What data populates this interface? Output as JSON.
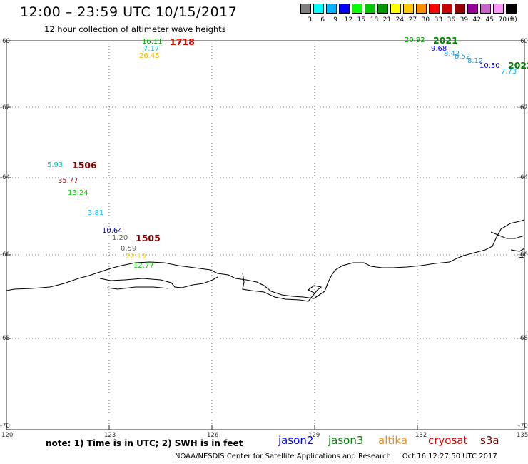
{
  "header": {
    "title": "12:00 – 23:59 UTC 10/15/2017",
    "subtitle": "12 hour collection of altimeter wave heights"
  },
  "legend": {
    "unit": "(ft)",
    "colors": [
      "#808080",
      "#00ffff",
      "#00b4ff",
      "#0000ff",
      "#00ff00",
      "#00c800",
      "#009600",
      "#ffff00",
      "#ffc800",
      "#ff8c00",
      "#ff0000",
      "#c80000",
      "#960000",
      "#960096",
      "#c864c8",
      "#ff96ff",
      "#000000"
    ],
    "labels": [
      "3",
      "6",
      "9",
      "12",
      "15",
      "18",
      "21",
      "24",
      "27",
      "30",
      "33",
      "36",
      "39",
      "42",
      "45",
      "70"
    ]
  },
  "axes": {
    "lat_labels": [
      "-60",
      "-62",
      "-64",
      "-66",
      "-68",
      "-70"
    ],
    "lon_labels": [
      "120",
      "123",
      "126",
      "129",
      "132",
      "135"
    ]
  },
  "tracks": [
    {
      "label": "1718",
      "color": "#e00000"
    },
    {
      "label": "2021",
      "color": "#008000"
    },
    {
      "label": "2022",
      "color": "#008000"
    },
    {
      "label": "1506",
      "color": "#800000"
    },
    {
      "label": "1505",
      "color": "#800000"
    }
  ],
  "wave_heights": [
    {
      "value": "16.11",
      "color": "#009600"
    },
    {
      "value": "7.17",
      "color": "#00c8c8"
    },
    {
      "value": "26.45",
      "color": "#f0b400"
    },
    {
      "value": "20.92",
      "color": "#009600"
    },
    {
      "value": "9.68",
      "color": "#0000ff"
    },
    {
      "value": "8.42",
      "color": "#00a0ff"
    },
    {
      "value": "8.52",
      "color": "#00a0ff"
    },
    {
      "value": "8.12",
      "color": "#00a0ff"
    },
    {
      "value": "10.50",
      "color": "#0000c8"
    },
    {
      "value": "7.73",
      "color": "#00b4ff"
    },
    {
      "value": "5.93",
      "color": "#00c8c8"
    },
    {
      "value": "35.77",
      "color": "#c00000"
    },
    {
      "value": "13.24",
      "color": "#00d000"
    },
    {
      "value": "3.81",
      "color": "#00c8ff"
    },
    {
      "value": "10.64",
      "color": "#0000a0"
    },
    {
      "value": "1.20",
      "color": "#606060"
    },
    {
      "value": "0.59",
      "color": "#606060"
    },
    {
      "value": "22.19",
      "color": "#ffd700"
    },
    {
      "value": "12.77",
      "color": "#00c800"
    }
  ],
  "footer": {
    "note": "note: 1) Time is in UTC; 2) SWH is in feet",
    "satellites": [
      {
        "name": "jason2",
        "color": "#0000ff"
      },
      {
        "name": "jason3",
        "color": "#008000"
      },
      {
        "name": "altika",
        "color": "#ff8c00"
      },
      {
        "name": "cryosat",
        "color": "#e00000"
      },
      {
        "name": "s3a",
        "color": "#800000"
      }
    ],
    "credit": "NOAA/NESDIS Center for Satellite Applications and Research",
    "timestamp": "Oct 16 12:27:50 UTC 2017"
  }
}
